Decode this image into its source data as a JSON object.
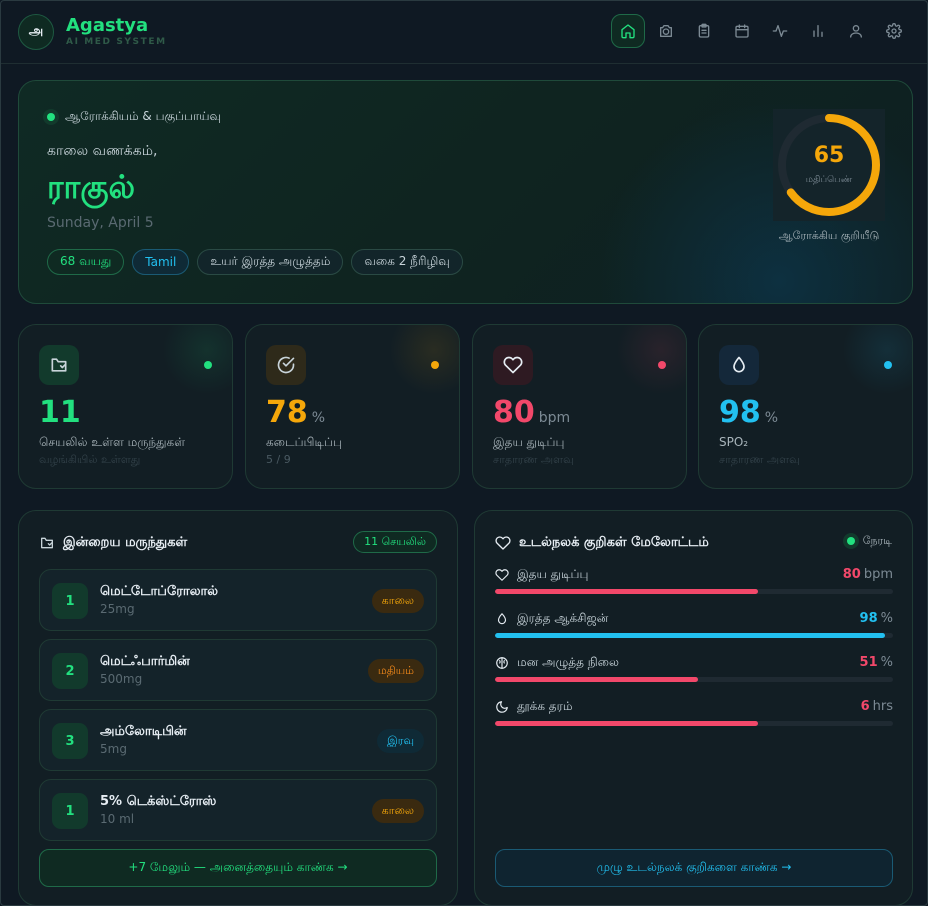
{
  "header": {
    "logo_text": "அ",
    "brand_title": "Agastya",
    "brand_subtitle": "AI MED SYSTEM",
    "nav_icons": [
      "home-icon",
      "camera-icon",
      "clipboard-icon",
      "calendar-icon",
      "activity-icon",
      "bar-chart-icon",
      "user-icon",
      "settings-icon"
    ]
  },
  "hero": {
    "tag": "ஆரோக்கியம் & பகுப்பாய்வு",
    "greeting": "காலை வணக்கம்,",
    "name": "ராகுல்",
    "date": "Sunday, April 5",
    "chips": [
      "68 வயது",
      "Tamil",
      "உயர் இரத்த அழுத்தம்",
      "வகை 2 நீரிழிவு"
    ],
    "score": {
      "value": "65",
      "value_num": 65,
      "max": 100,
      "label": "மதிப்பெண்",
      "caption": "ஆரோக்கிய குறியீடு",
      "color": "#f5a70a"
    }
  },
  "stats": [
    {
      "icon": "pill-icon",
      "value": "11",
      "unit": "",
      "label": "செயலில் உள்ள மருந்துகள்",
      "sub": "வழங்கியில் உள்ளது",
      "color": "#22e07f"
    },
    {
      "icon": "check-circle-icon",
      "value": "78",
      "unit": "%",
      "label": "கடைப்பிடிப்பு",
      "sub": "5 / 9",
      "color": "#f5a70a"
    },
    {
      "icon": "heart-icon",
      "value": "80",
      "unit": "bpm",
      "label": "இதய துடிப்பு",
      "sub": "சாதாரண அளவு",
      "color": "#f2486a"
    },
    {
      "icon": "droplet-icon",
      "value": "98",
      "unit": "%",
      "label": "SPO₂",
      "sub": "சாதாரண அளவு",
      "color": "#22c0f0"
    }
  ],
  "medications": {
    "title": "இன்றைய மருந்துகள்",
    "badge": "11 செயலில்",
    "items": [
      {
        "num": "1",
        "name": "மெட்டோப்ரோலால்",
        "dose": "25mg",
        "time": "காலை",
        "kind": "morning"
      },
      {
        "num": "2",
        "name": "மெட்ஃபார்மின்",
        "dose": "500mg",
        "time": "மதியம்",
        "kind": "noon"
      },
      {
        "num": "3",
        "name": "அம்லோடிபின்",
        "dose": "5mg",
        "time": "இரவு",
        "kind": "night"
      },
      {
        "num": "1",
        "name": "5% டெக்ஸ்ட்ரோஸ்",
        "dose": "10 ml",
        "time": "காலை",
        "kind": "morning"
      }
    ],
    "more_label": "+7 மேலும் — அனைத்தையும் காண்க →"
  },
  "vitals": {
    "title": "உடல்நலக் குறிகள் மேலோட்டம்",
    "live_label": "நேரடி",
    "metrics": [
      {
        "icon": "heart-icon",
        "label": "இதய துடிப்பு",
        "value": "80",
        "unit": "bpm",
        "fraction": 0.66,
        "color": "#f2486a"
      },
      {
        "icon": "droplet-icon",
        "label": "இரத்த ஆக்சிஜன்",
        "value": "98",
        "unit": "%",
        "fraction": 0.98,
        "color": "#22c0f0"
      },
      {
        "icon": "brain-icon",
        "label": "மன அழுத்த நிலை",
        "value": "51",
        "unit": "%",
        "fraction": 0.51,
        "color": "#f2486a"
      },
      {
        "icon": "moon-icon",
        "label": "தூக்க தரம்",
        "value": "6",
        "unit": "hrs",
        "fraction": 0.66,
        "color": "#f2486a"
      }
    ],
    "all_label": "முழு உடல்நலக் குறிகளை காண்க →"
  }
}
